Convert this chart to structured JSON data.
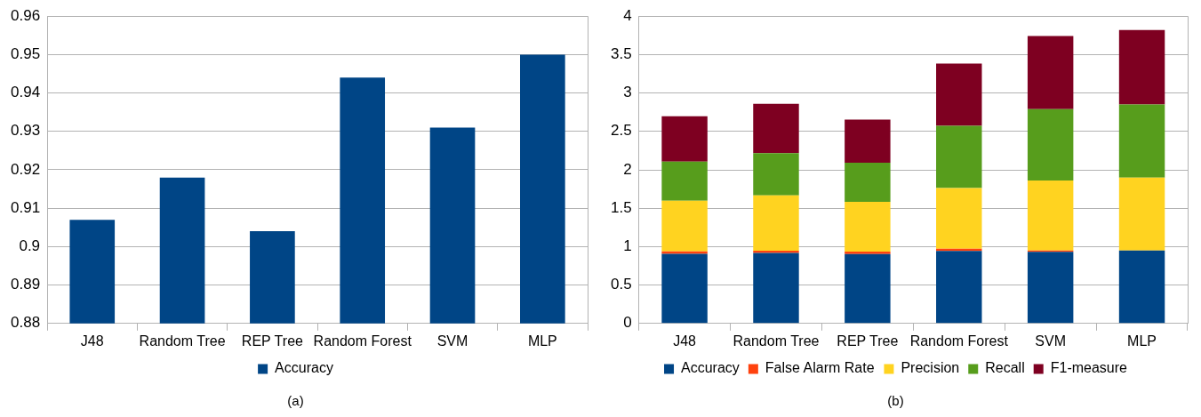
{
  "chart_data": [
    {
      "type": "bar",
      "title": "(a)",
      "categories": [
        "J48",
        "Random Tree",
        "REP Tree",
        "Random Forest",
        "SVM",
        "MLP"
      ],
      "series": [
        {
          "name": "Accuracy",
          "color": "#004586",
          "values": [
            0.907,
            0.918,
            0.904,
            0.944,
            0.931,
            0.95
          ]
        }
      ],
      "ylim": [
        0.88,
        0.96
      ],
      "yticks": [
        0.88,
        0.89,
        0.9,
        0.91,
        0.92,
        0.93,
        0.94,
        0.95,
        0.96
      ],
      "grid": "y",
      "legend": "bottom"
    },
    {
      "type": "bar",
      "title": "(b)",
      "stacked": true,
      "categories": [
        "J48",
        "Random Tree",
        "REP Tree",
        "Random Forest",
        "SVM",
        "MLP"
      ],
      "series": [
        {
          "name": "Accuracy",
          "color": "#004586",
          "values": [
            0.907,
            0.918,
            0.904,
            0.944,
            0.931,
            0.95
          ]
        },
        {
          "name": "False Alarm Rate",
          "color": "#ff420e",
          "values": [
            0.03,
            0.03,
            0.03,
            0.03,
            0.02,
            0
          ]
        },
        {
          "name": "Precision",
          "color": "#ffd320",
          "values": [
            0.66,
            0.72,
            0.65,
            0.79,
            0.91,
            0.95
          ]
        },
        {
          "name": "Recall",
          "color": "#579d1c",
          "values": [
            0.51,
            0.55,
            0.51,
            0.81,
            0.93,
            0.95
          ]
        },
        {
          "name": "F1-measure",
          "color": "#7e0021",
          "values": [
            0.59,
            0.64,
            0.56,
            0.81,
            0.95,
            0.97
          ]
        }
      ],
      "ylim": [
        0,
        4
      ],
      "yticks": [
        0,
        0.5,
        1,
        1.5,
        2,
        2.5,
        3,
        3.5,
        4
      ],
      "grid": "y",
      "legend": "bottom"
    }
  ]
}
